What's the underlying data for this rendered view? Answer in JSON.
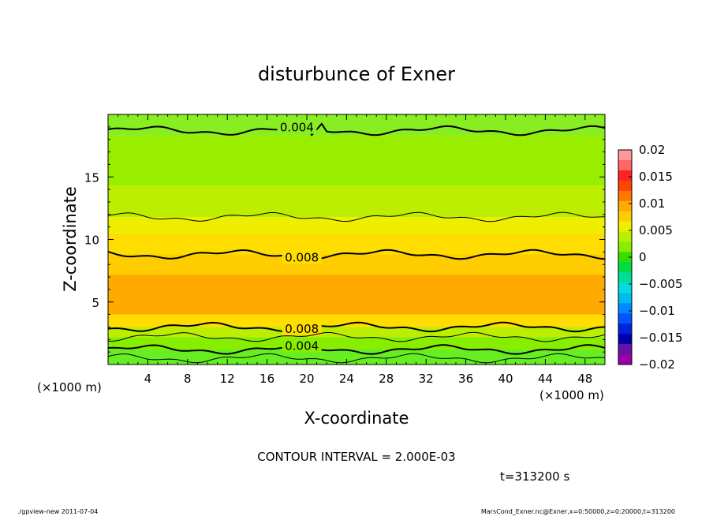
{
  "chart_data": {
    "type": "heatmap",
    "title": "disturbunce of Exner",
    "xlabel": "X-coordinate",
    "ylabel": "Z-coordinate",
    "x_unit_left": "(×1000 m)",
    "x_unit_right": "(×1000 m)",
    "xlim": [
      0,
      50
    ],
    "ylim": [
      0,
      20
    ],
    "x_ticks": [
      4,
      8,
      12,
      16,
      20,
      24,
      28,
      32,
      36,
      40,
      44,
      48
    ],
    "y_ticks": [
      5,
      10,
      15
    ],
    "colorbar": {
      "ticks": [
        "0.02",
        "0.015",
        "0.01",
        "0.005",
        "0",
        "−0.005",
        "−0.01",
        "−0.015",
        "−0.02"
      ],
      "colors": [
        "#ff9999",
        "#ff6666",
        "#ff2222",
        "#ff4400",
        "#ff7700",
        "#ffaa00",
        "#ffcc00",
        "#eeee00",
        "#bbee00",
        "#88ee00",
        "#33dd00",
        "#00dd44",
        "#00dd99",
        "#00dddd",
        "#00bbee",
        "#0088ff",
        "#0055ff",
        "#0022dd",
        "#0000aa",
        "#6611aa",
        "#9900aa"
      ]
    },
    "bands": [
      {
        "z_from": 0,
        "z_to": 1.2,
        "value": 0.002,
        "color": "#66ee22"
      },
      {
        "z_from": 1.2,
        "z_to": 2.2,
        "value": 0.004,
        "color": "#88ee00"
      },
      {
        "z_from": 2.2,
        "z_to": 3.0,
        "value": 0.006,
        "color": "#bbee00"
      },
      {
        "z_from": 3.0,
        "z_to": 4.0,
        "value": 0.008,
        "color": "#ffdd00"
      },
      {
        "z_from": 4.0,
        "z_to": 7.2,
        "value": 0.01,
        "color": "#ffaa00"
      },
      {
        "z_from": 7.2,
        "z_to": 8.8,
        "value": 0.009,
        "color": "#ffcc00"
      },
      {
        "z_from": 8.8,
        "z_to": 10.5,
        "value": 0.008,
        "color": "#ffdd00"
      },
      {
        "z_from": 10.5,
        "z_to": 11.8,
        "value": 0.007,
        "color": "#eeee00"
      },
      {
        "z_from": 11.8,
        "z_to": 14.3,
        "value": 0.006,
        "color": "#bbee00"
      },
      {
        "z_from": 14.3,
        "z_to": 18.3,
        "value": 0.005,
        "color": "#99ee00"
      },
      {
        "z_from": 18.3,
        "z_to": 20,
        "value": 0.004,
        "color": "#88ee22"
      }
    ],
    "contours": [
      {
        "value": 0.004,
        "z": 18.7,
        "label": "0.004",
        "label_x": 19,
        "bold": true
      },
      {
        "value": 0.006,
        "z": 11.8,
        "label": "",
        "label_x": 0,
        "bold": false
      },
      {
        "value": 0.008,
        "z": 8.8,
        "label": "0.008",
        "label_x": 19.5,
        "bold": true
      },
      {
        "value": 0.008,
        "z": 3.0,
        "label": "0.008",
        "label_x": 19.5,
        "bold": true
      },
      {
        "value": 0.006,
        "z": 2.2,
        "label": "",
        "label_x": 0,
        "bold": false
      },
      {
        "value": 0.004,
        "z": 1.2,
        "label": "0.004",
        "label_x": 19.5,
        "bold": true
      },
      {
        "value": 0.002,
        "z": 0.5,
        "label": "",
        "label_x": 0,
        "bold": false
      }
    ],
    "contour_interval_text": "CONTOUR INTERVAL = 2.000E-03",
    "time_text": "t=313200 s"
  },
  "footer": {
    "left": "./gpview-new   2011-07-04",
    "right": "MarsCond_Exner.nc@Exner,x=0:50000,z=0:20000,t=313200"
  }
}
